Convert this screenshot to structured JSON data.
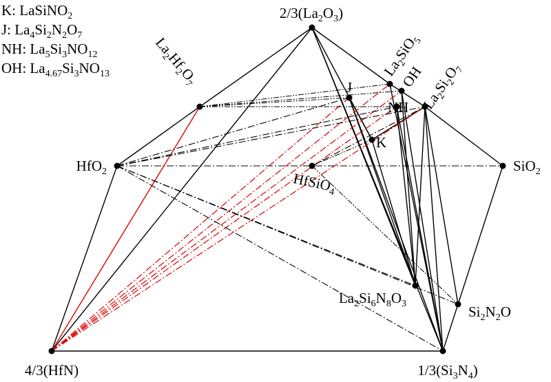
{
  "legend": [
    [
      "K: LaSiNO",
      "2"
    ],
    [
      "J: La",
      "4",
      "Si",
      "2",
      "N",
      "2",
      "O",
      "7"
    ],
    [
      "NH: La",
      "5",
      "Si",
      "3",
      "NO",
      "12"
    ],
    [
      "OH: La",
      "4.67",
      "Si",
      "3",
      "NO",
      "13"
    ]
  ],
  "nodes": [
    {
      "label": [
        "2/3(La",
        "2",
        "O",
        "3",
        ")"
      ]
    },
    {
      "label": [
        "HfO",
        "2"
      ]
    },
    {
      "label": [
        "SiO",
        "2"
      ]
    },
    {
      "label": [
        "4/3(HfN)"
      ]
    },
    {
      "label": [
        "1/3(Si",
        "3",
        "N",
        "4",
        ")"
      ]
    },
    {
      "label": [
        "La",
        "2",
        "Hf",
        "2",
        "O",
        "7"
      ]
    },
    {
      "label": [
        "HfSiO",
        "4"
      ]
    },
    {
      "label": [
        "J"
      ]
    },
    {
      "label": [
        "La",
        "2",
        "SiO",
        "5"
      ]
    },
    {
      "label": [
        "OH"
      ]
    },
    {
      "label": [
        "NH"
      ]
    },
    {
      "label": [
        "La",
        "2",
        "Si",
        "2",
        "O",
        "7"
      ]
    },
    {
      "label": [
        "K"
      ]
    },
    {
      "label": [
        "La",
        "2",
        "Si",
        "6",
        "N",
        "8",
        "O",
        "3"
      ]
    },
    {
      "label": [
        "Si",
        "2",
        "N",
        "2",
        "O"
      ]
    }
  ]
}
